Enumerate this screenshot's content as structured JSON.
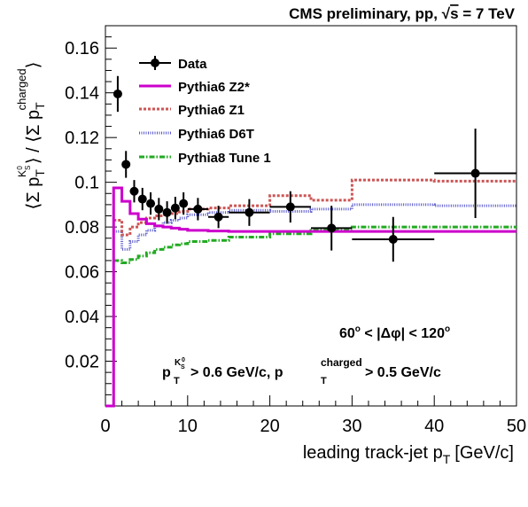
{
  "chart_data": {
    "type": "line",
    "title": "CMS preliminary, pp, √s = 7 TeV",
    "title_parts": {
      "prefix": "CMS preliminary, pp, ",
      "sqrt": "√",
      "s": "s",
      "suffix": " = 7 TeV"
    },
    "xlabel": "leading track-jet p",
    "xlabel_sub": "T",
    "xlabel_unit": "[GeV/c]",
    "ylabel": "⟨Σ p_T^{K0s}⟩ / ⟨Σ p_T^{charged}⟩",
    "ylabel_parts": {
      "open1": "⟨Σ p",
      "sub1": "T",
      "sup1": "K",
      "sup1_sub": "S",
      "sup1_sup": "0",
      "close1": "⟩ / ⟨Σ p",
      "sub2": "T",
      "sup2": "charged",
      "close2": "⟩"
    },
    "xlim": [
      0,
      50
    ],
    "ylim": [
      0,
      0.17
    ],
    "xticks": [
      0,
      10,
      20,
      30,
      40,
      50
    ],
    "xtick_labels": [
      "0",
      "10",
      "20",
      "30",
      "40",
      "50"
    ],
    "yticks": [
      0.02,
      0.04,
      0.06,
      0.08,
      0.1,
      0.12,
      0.14,
      0.16
    ],
    "ytick_labels": [
      "0.02",
      "0.04",
      "0.06",
      "0.08",
      "0.1",
      "0.12",
      "0.14",
      "0.16"
    ],
    "grid": false,
    "legend_position": "top-left",
    "annotations": {
      "dphi": {
        "lead": "60",
        "deg1": "o",
        "mid": " < |Δφ| < 120",
        "deg2": "o"
      },
      "cuts": {
        "p1": "p",
        "t1": "T",
        "k": "K",
        "s": "S",
        "zero": "0",
        "cut1": " > 0.6 GeV/c, p",
        "t2": "T",
        "charged": "charged",
        "cut2": " > 0.5 GeV/c"
      }
    },
    "data_points": {
      "name": "Data",
      "color": "#000000",
      "points": [
        {
          "x": 1.5,
          "xerr": 0.5,
          "y": 0.1395,
          "yerr": 0.008
        },
        {
          "x": 2.5,
          "xerr": 0.5,
          "y": 0.108,
          "yerr": 0.006
        },
        {
          "x": 3.5,
          "xerr": 0.5,
          "y": 0.096,
          "yerr": 0.005
        },
        {
          "x": 4.5,
          "xerr": 0.5,
          "y": 0.0925,
          "yerr": 0.005
        },
        {
          "x": 5.5,
          "xerr": 0.5,
          "y": 0.0905,
          "yerr": 0.005
        },
        {
          "x": 6.5,
          "xerr": 0.5,
          "y": 0.088,
          "yerr": 0.005
        },
        {
          "x": 7.5,
          "xerr": 0.5,
          "y": 0.0865,
          "yerr": 0.005
        },
        {
          "x": 8.5,
          "xerr": 0.5,
          "y": 0.0885,
          "yerr": 0.005
        },
        {
          "x": 9.5,
          "xerr": 0.5,
          "y": 0.0905,
          "yerr": 0.005
        },
        {
          "x": 11.25,
          "xerr": 1.25,
          "y": 0.088,
          "yerr": 0.005
        },
        {
          "x": 13.75,
          "xerr": 1.25,
          "y": 0.0845,
          "yerr": 0.005
        },
        {
          "x": 17.5,
          "xerr": 2.5,
          "y": 0.0865,
          "yerr": 0.006
        },
        {
          "x": 22.5,
          "xerr": 2.5,
          "y": 0.089,
          "yerr": 0.007
        },
        {
          "x": 27.5,
          "xerr": 2.5,
          "y": 0.0795,
          "yerr": 0.01
        },
        {
          "x": 35,
          "xerr": 5,
          "y": 0.0745,
          "yerr": 0.01
        },
        {
          "x": 45,
          "xerr": 5,
          "y": 0.104,
          "yerr": 0.02
        }
      ]
    },
    "series": [
      {
        "name": "Pythia6 Z2*",
        "color": "#cc00cc",
        "style": "solid",
        "edges": [
          0,
          1,
          2,
          3,
          4,
          5,
          6,
          7,
          8,
          9,
          10,
          12.5,
          15,
          20,
          25,
          30,
          40,
          50
        ],
        "values": [
          0.0,
          0.0975,
          0.0915,
          0.086,
          0.0835,
          0.0815,
          0.0805,
          0.08,
          0.0795,
          0.079,
          0.0785,
          0.0782,
          0.078,
          0.078,
          0.078,
          0.078,
          0.078
        ]
      },
      {
        "name": "Pythia6 Z1",
        "color": "#cc5555",
        "style": "dashed",
        "edges": [
          1,
          2,
          3,
          4,
          5,
          6,
          7,
          8,
          9,
          10,
          12.5,
          15,
          20,
          25,
          30,
          40,
          50
        ],
        "values": [
          0.083,
          0.0765,
          0.08,
          0.082,
          0.084,
          0.085,
          0.0855,
          0.086,
          0.087,
          0.088,
          0.0885,
          0.0895,
          0.094,
          0.092,
          0.101,
          0.1005
        ]
      },
      {
        "name": "Pythia6 D6T",
        "color": "#5555cc",
        "style": "dotted",
        "edges": [
          1,
          2,
          3,
          4,
          5,
          6,
          7,
          8,
          9,
          10,
          12.5,
          15,
          20,
          25,
          30,
          40,
          50
        ],
        "values": [
          0.078,
          0.07,
          0.0735,
          0.0765,
          0.0785,
          0.0805,
          0.082,
          0.083,
          0.084,
          0.0855,
          0.0865,
          0.0875,
          0.087,
          0.088,
          0.09,
          0.0895
        ]
      },
      {
        "name": "Pythia8 Tune 1",
        "color": "#22aa22",
        "style": "dashdot",
        "edges": [
          1,
          2,
          3,
          4,
          5,
          6,
          7,
          8,
          9,
          10,
          12.5,
          15,
          20,
          25,
          30,
          40,
          50
        ],
        "values": [
          0.065,
          0.064,
          0.0655,
          0.067,
          0.0685,
          0.07,
          0.071,
          0.072,
          0.0725,
          0.0735,
          0.074,
          0.0755,
          0.077,
          0.0785,
          0.08,
          0.08
        ]
      }
    ]
  }
}
